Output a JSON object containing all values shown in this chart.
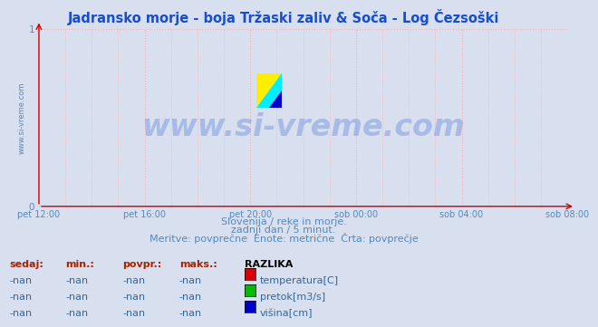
{
  "title": "Jadransko morje - boja Tržaski zaliv & Soča - Log Čezsoški",
  "title_color": "#1a4dcc",
  "title_fontsize": 10.5,
  "bg_color": "#d8e0f0",
  "plot_bg_color": "#d8e0f0",
  "grid_color": "#ffaaaa",
  "grid_style": ":",
  "tick_color": "#5588bb",
  "xticklabels": [
    "pet 12:00",
    "pet 16:00",
    "pet 20:00",
    "sob 00:00",
    "sob 04:00",
    "sob 08:00"
  ],
  "xtick_positions": [
    0,
    4,
    8,
    12,
    16,
    20
  ],
  "xlim": [
    0,
    20
  ],
  "ylim": [
    0,
    1
  ],
  "yticks": [
    0,
    1
  ],
  "yticklabels": [
    "0",
    "1"
  ],
  "watermark_text": "www.si-vreme.com",
  "watermark_color": "#1a4dcc",
  "watermark_fontsize": 24,
  "watermark_alpha": 0.25,
  "ylabel_text": "www.si-vreme.com",
  "ylabel_color": "#5588bb",
  "ylabel_fontsize": 6,
  "subtitle_lines": [
    "Slovenija / reke in morje.",
    "zadnji dan / 5 minut.",
    "Meritve: povprečne  Enote: metrične  Črta: povprečje"
  ],
  "subtitle_color": "#5588bb",
  "subtitle_fontsize": 8,
  "legend_title": "RAZLIKA",
  "legend_items": [
    {
      "label": "temperatura[C]",
      "color": "#dd0000"
    },
    {
      "label": "pretok[m3/s]",
      "color": "#00bb00"
    },
    {
      "label": "višina[cm]",
      "color": "#0000cc"
    }
  ],
  "table_headers": [
    "sedaj:",
    "min.:",
    "povpr.:",
    "maks.:"
  ],
  "table_value": "-nan",
  "table_header_color": "#aa2200",
  "table_data_color": "#336699",
  "legend_title_color": "#000000",
  "table_fontsize": 8,
  "arrow_color": "#cc0000"
}
